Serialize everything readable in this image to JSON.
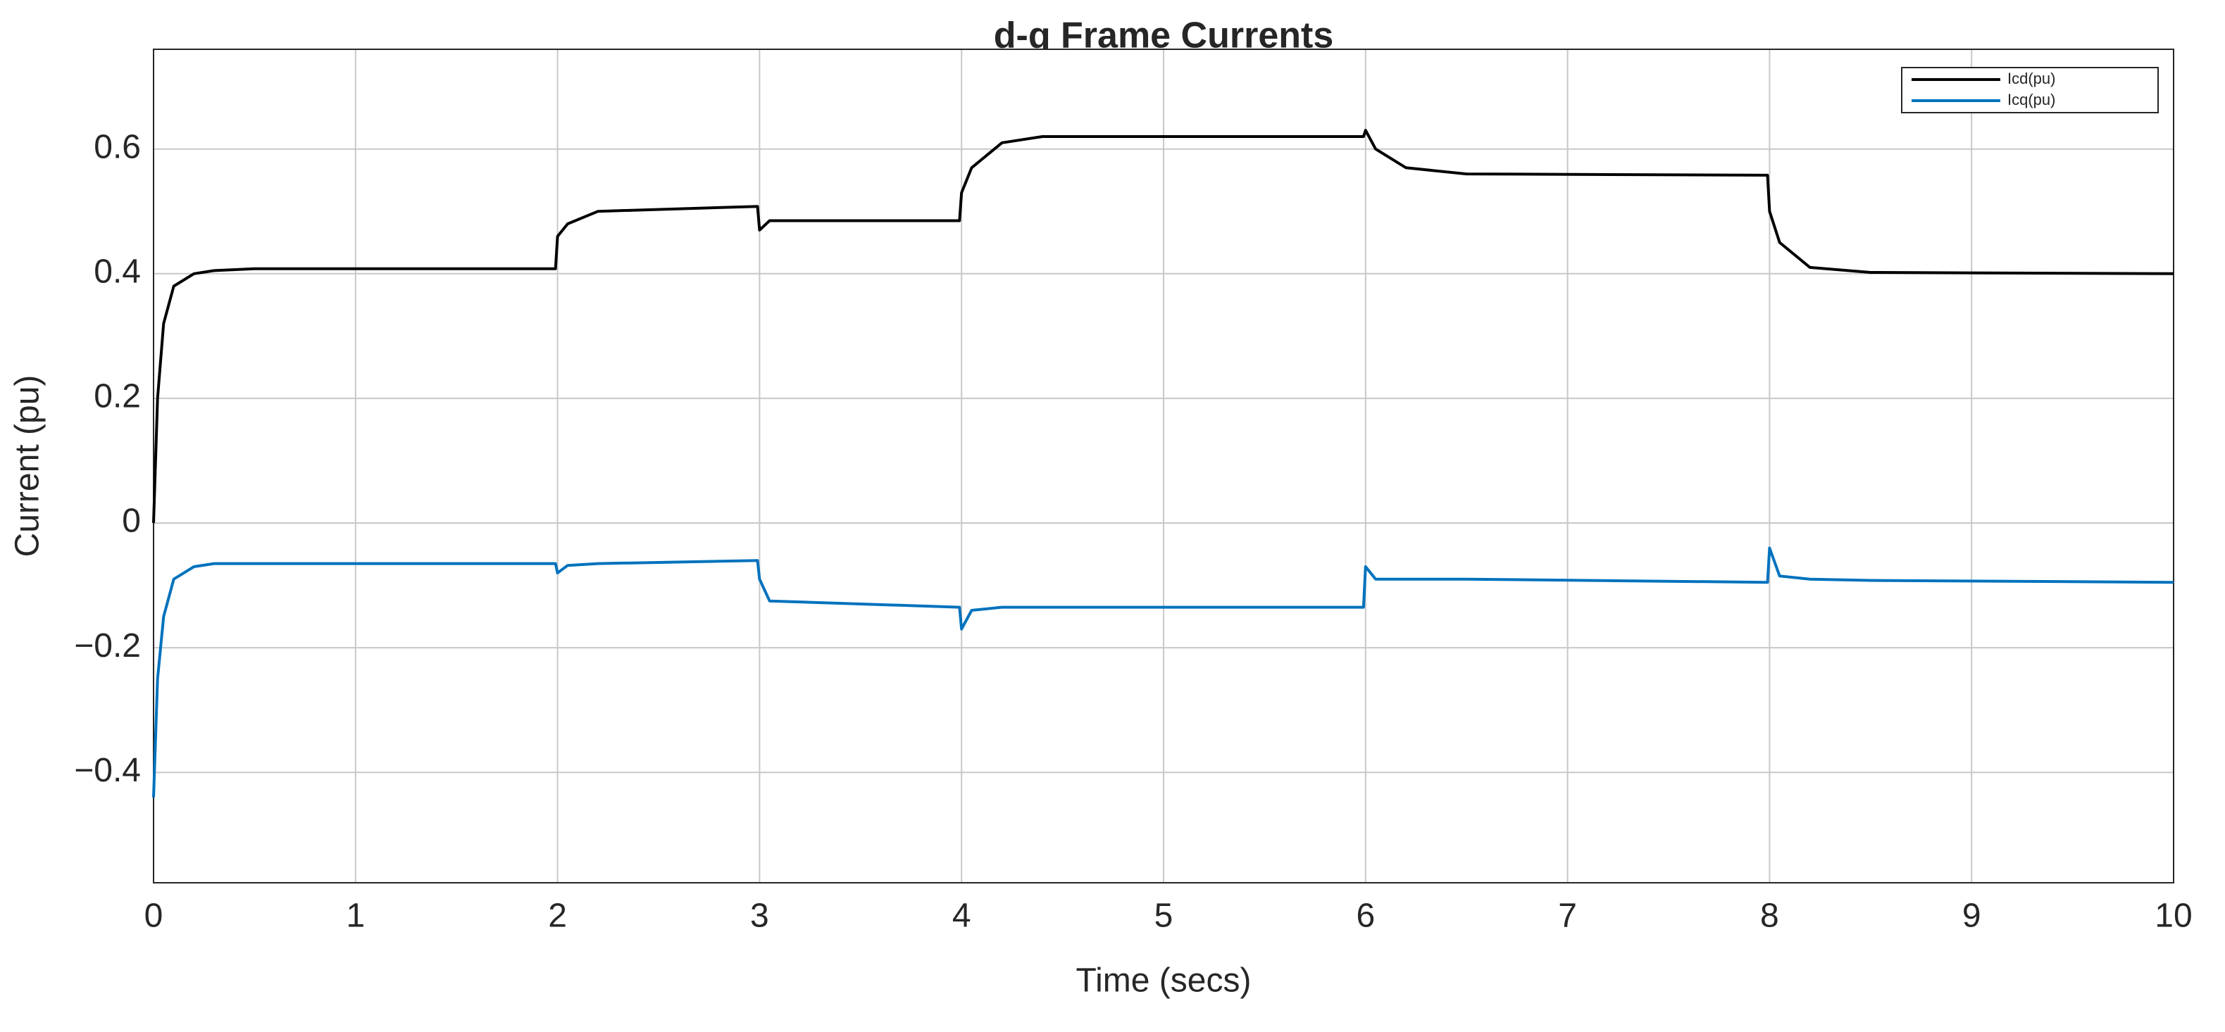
{
  "chart_data": {
    "type": "line",
    "title": "d-q Frame Currents",
    "x_label": "Time (secs)",
    "y_label": "Current (pu)",
    "x": [
      0,
      0.02,
      0.05,
      0.1,
      0.2,
      0.3,
      0.5,
      1.99,
      2.0,
      2.05,
      2.2,
      2.99,
      3.0,
      3.05,
      3.99,
      4.0,
      4.05,
      4.2,
      4.4,
      5.99,
      6.0,
      6.05,
      6.2,
      6.5,
      7.99,
      8.0,
      8.05,
      8.2,
      8.5,
      10
    ],
    "series": [
      {
        "name": "Icd(pu)",
        "color": "#000000",
        "values": [
          0,
          0.2,
          0.32,
          0.38,
          0.4,
          0.405,
          0.408,
          0.408,
          0.46,
          0.48,
          0.5,
          0.508,
          0.47,
          0.485,
          0.485,
          0.53,
          0.57,
          0.61,
          0.62,
          0.62,
          0.63,
          0.6,
          0.57,
          0.56,
          0.558,
          0.5,
          0.45,
          0.41,
          0.402,
          0.4
        ]
      },
      {
        "name": "Icq(pu)",
        "color": "#0072bd",
        "values": [
          -0.44,
          -0.25,
          -0.15,
          -0.09,
          -0.07,
          -0.065,
          -0.065,
          -0.065,
          -0.08,
          -0.068,
          -0.065,
          -0.06,
          -0.09,
          -0.125,
          -0.135,
          -0.17,
          -0.14,
          -0.135,
          -0.135,
          -0.135,
          -0.07,
          -0.09,
          -0.09,
          -0.09,
          -0.095,
          -0.04,
          -0.085,
          -0.09,
          -0.092,
          -0.095
        ]
      }
    ],
    "xlim": [
      0,
      10
    ],
    "xticks": [
      0,
      1,
      2,
      3,
      4,
      5,
      6,
      7,
      8,
      9,
      10
    ],
    "ylim": [
      -0.577,
      0.76
    ],
    "yticks": [
      {
        "value": -0.4,
        "label": "−0.4"
      },
      {
        "value": -0.2,
        "label": "−0.2"
      },
      0,
      0.2,
      0.4,
      0.6
    ],
    "grid": true,
    "legend": "top-right"
  }
}
